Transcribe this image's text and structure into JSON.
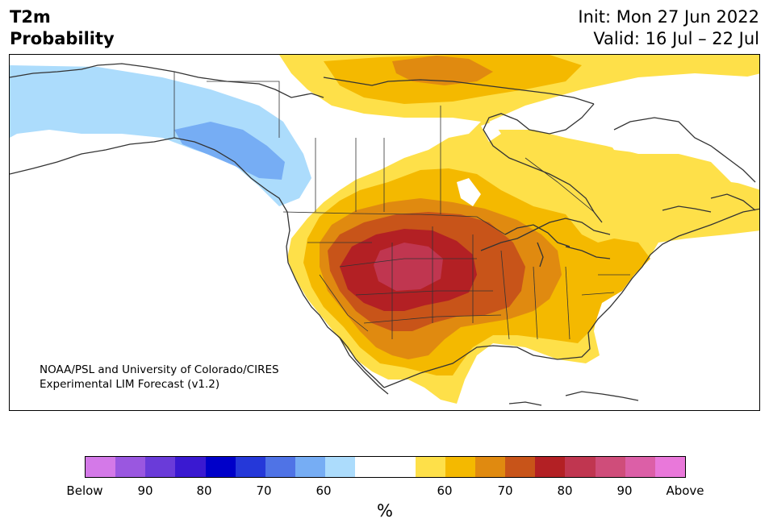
{
  "title": {
    "line1": "T2m",
    "line2": "Probability"
  },
  "dates": {
    "init": "Init: Mon 27 Jun 2022",
    "valid": "Valid: 16 Jul – 22 Jul"
  },
  "credit": {
    "line1": "NOAA/PSL and University of Colorado/CIRES",
    "line2": "Experimental LIM Forecast (v1.2)"
  },
  "colorbar": {
    "unit": "%",
    "labels": [
      "Below",
      "90",
      "80",
      "70",
      "60",
      "60",
      "70",
      "80",
      "90",
      "Above"
    ],
    "below_colors": [
      "#d479e8",
      "#9a57e0",
      "#6a3bd9",
      "#3a19d1",
      "#0000c9",
      "#2538d9",
      "#4f73e6",
      "#76adf4",
      "#acdcfc"
    ],
    "neutral_color": "#ffffff",
    "above_colors": [
      "#fee049",
      "#f4b900",
      "#e08a10",
      "#c85419",
      "#b32024",
      "#c03650",
      "#cf4d7a",
      "#dc5fa7",
      "#e978da"
    ]
  },
  "colors": {
    "land_outline": "#333333",
    "above_60": "#fee049",
    "above_65": "#f4b900",
    "above_70": "#e08a10",
    "above_75": "#c85419",
    "above_80": "#b32024",
    "above_85": "#c03650",
    "below_60": "#acdcfc",
    "below_65": "#76adf4"
  }
}
